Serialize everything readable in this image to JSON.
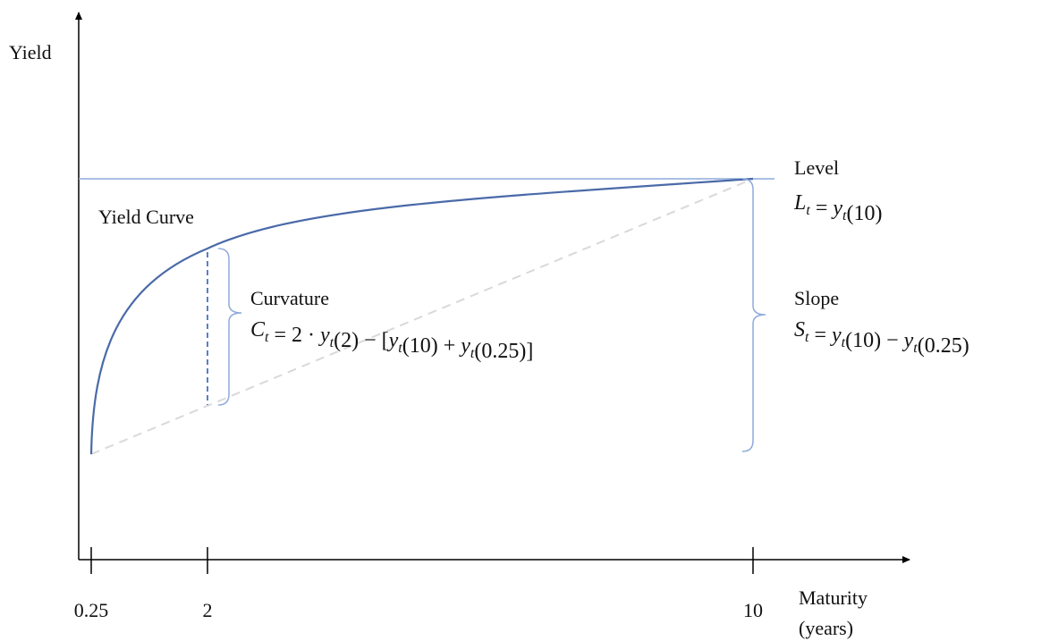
{
  "axes": {
    "y_label": "Yield",
    "x_label": [
      "Maturity",
      "(years)"
    ],
    "x_ticks": [
      "0.25",
      "2",
      "10"
    ]
  },
  "curve_label": "Yield Curve",
  "curvature": {
    "label": "Curvature",
    "formula": [
      {
        "base": "C",
        "sub": "t"
      },
      " = 2 · ",
      {
        "base": "y",
        "sub": "t"
      },
      "(2) − [",
      {
        "base": "y",
        "sub": "t"
      },
      "(10) + ",
      {
        "base": "y",
        "sub": "t"
      },
      "(0.25)]"
    ]
  },
  "level": {
    "label": "Level",
    "formula": [
      {
        "base": "L",
        "sub": "t"
      },
      " = ",
      {
        "base": "y",
        "sub": "t"
      },
      "(10)"
    ]
  },
  "slope": {
    "label": "Slope",
    "formula": [
      {
        "base": "S",
        "sub": "t"
      },
      " = ",
      {
        "base": "y",
        "sub": "t"
      },
      "(10) − ",
      {
        "base": "y",
        "sub": "t"
      },
      "(0.25)"
    ]
  }
}
